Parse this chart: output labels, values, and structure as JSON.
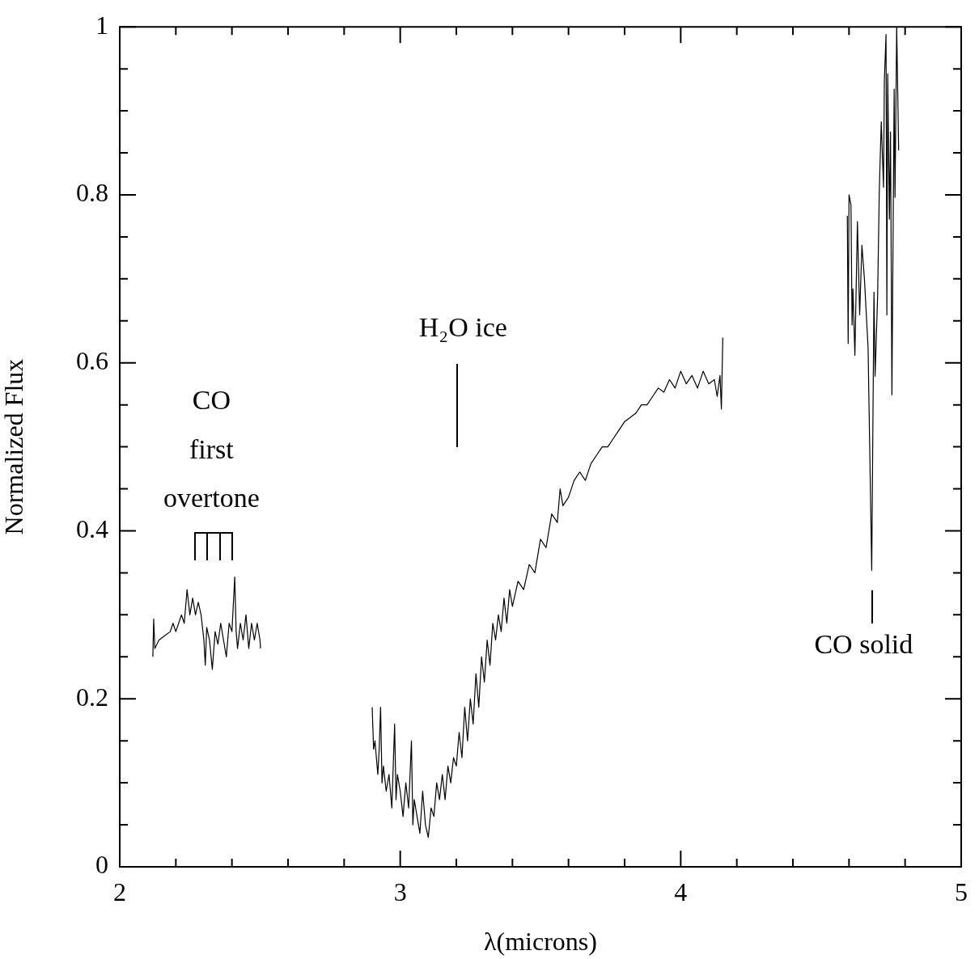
{
  "chart_data": {
    "type": "line",
    "xlabel": "λ(microns)",
    "ylabel": "Normalized Flux",
    "xlim": [
      2,
      5
    ],
    "ylim": [
      0,
      1
    ],
    "xticks": [
      2,
      {
        "value": 2.2,
        "label": null
      },
      {
        "value": 2.4,
        "label": null
      },
      {
        "value": 2.6,
        "label": null
      },
      {
        "value": 2.8,
        "label": null
      },
      3,
      {
        "value": 3.2,
        "label": null
      },
      {
        "value": 3.4,
        "label": null
      },
      {
        "value": 3.6,
        "label": null
      },
      {
        "value": 3.8,
        "label": null
      },
      4,
      {
        "value": 4.2,
        "label": null
      },
      {
        "value": 4.4,
        "label": null
      },
      {
        "value": 4.6,
        "label": null
      },
      {
        "value": 4.8,
        "label": null
      },
      5
    ],
    "yticks": [
      0,
      {
        "value": 0.05,
        "label": null
      },
      {
        "value": 0.1,
        "label": null
      },
      {
        "value": 0.15,
        "label": null
      },
      0.2,
      {
        "value": 0.25,
        "label": null
      },
      {
        "value": 0.3,
        "label": null
      },
      {
        "value": 0.35,
        "label": null
      },
      0.4,
      {
        "value": 0.45,
        "label": null
      },
      {
        "value": 0.5,
        "label": null
      },
      {
        "value": 0.55,
        "label": null
      },
      0.6,
      {
        "value": 0.65,
        "label": null
      },
      {
        "value": 0.7,
        "label": null
      },
      {
        "value": 0.75,
        "label": null
      },
      0.8,
      {
        "value": 0.85,
        "label": null
      },
      {
        "value": 0.9,
        "label": null
      },
      {
        "value": 0.95,
        "label": null
      },
      1
    ],
    "grid": false,
    "legend": false,
    "marker": "none",
    "line_style": "solid",
    "annotations": [
      "CO first overtone",
      "H₂O ice",
      "CO solid"
    ],
    "series": [
      {
        "color": "#000000",
        "x": [
          2.118,
          2.121,
          2.125,
          2.14,
          2.16,
          2.18,
          2.19,
          2.2,
          2.22,
          2.23,
          2.24,
          2.25,
          2.26,
          2.27,
          2.28,
          2.29,
          2.3,
          2.305,
          2.31,
          2.32,
          2.33,
          2.34,
          2.35,
          2.36,
          2.37,
          2.38,
          2.39,
          2.4,
          2.41,
          2.415,
          2.42,
          2.43,
          2.44,
          2.45,
          2.46,
          2.47,
          2.48,
          2.49,
          2.5,
          2.502
        ],
        "values": [
          0.25,
          0.295,
          0.26,
          0.27,
          0.275,
          0.28,
          0.29,
          0.28,
          0.3,
          0.29,
          0.33,
          0.3,
          0.32,
          0.3,
          0.315,
          0.3,
          0.27,
          0.24,
          0.285,
          0.27,
          0.235,
          0.28,
          0.265,
          0.29,
          0.27,
          0.25,
          0.29,
          0.28,
          0.345,
          0.28,
          0.26,
          0.29,
          0.27,
          0.3,
          0.26,
          0.29,
          0.27,
          0.29,
          0.27,
          0.26
        ]
      },
      {
        "color": "#000000",
        "x": [
          2.9,
          2.905,
          2.91,
          2.92,
          2.925,
          2.93,
          2.935,
          2.94,
          2.95,
          2.96,
          2.97,
          2.98,
          2.985,
          2.99,
          3.0,
          3.01,
          3.02,
          3.03,
          3.04,
          3.045,
          3.05,
          3.06,
          3.07,
          3.08,
          3.09,
          3.1,
          3.11,
          3.12,
          3.13,
          3.14,
          3.15,
          3.16,
          3.17,
          3.18,
          3.19,
          3.2,
          3.21,
          3.22,
          3.23,
          3.24,
          3.25,
          3.26,
          3.27,
          3.28,
          3.29,
          3.3,
          3.31,
          3.32,
          3.33,
          3.34,
          3.35,
          3.36,
          3.37,
          3.38,
          3.39,
          3.4,
          3.42,
          3.44,
          3.46,
          3.48,
          3.5,
          3.52,
          3.54,
          3.56,
          3.57,
          3.58,
          3.6,
          3.62,
          3.64,
          3.66,
          3.68,
          3.7,
          3.72,
          3.74,
          3.76,
          3.78,
          3.8,
          3.82,
          3.84,
          3.86,
          3.88,
          3.9,
          3.92,
          3.94,
          3.96,
          3.98,
          4.0,
          4.02,
          4.04,
          4.06,
          4.08,
          4.1,
          4.12,
          4.13,
          4.14,
          4.145,
          4.15
        ],
        "values": [
          0.19,
          0.14,
          0.15,
          0.11,
          0.14,
          0.19,
          0.1,
          0.12,
          0.09,
          0.11,
          0.07,
          0.17,
          0.08,
          0.11,
          0.09,
          0.06,
          0.1,
          0.07,
          0.15,
          0.05,
          0.08,
          0.06,
          0.04,
          0.09,
          0.05,
          0.035,
          0.07,
          0.06,
          0.1,
          0.08,
          0.11,
          0.08,
          0.12,
          0.1,
          0.13,
          0.12,
          0.16,
          0.13,
          0.19,
          0.15,
          0.2,
          0.17,
          0.23,
          0.19,
          0.25,
          0.22,
          0.27,
          0.24,
          0.29,
          0.27,
          0.3,
          0.28,
          0.32,
          0.29,
          0.33,
          0.31,
          0.34,
          0.33,
          0.36,
          0.35,
          0.39,
          0.38,
          0.42,
          0.41,
          0.45,
          0.43,
          0.44,
          0.46,
          0.47,
          0.46,
          0.48,
          0.49,
          0.5,
          0.5,
          0.51,
          0.52,
          0.53,
          0.535,
          0.54,
          0.55,
          0.55,
          0.56,
          0.57,
          0.565,
          0.58,
          0.57,
          0.59,
          0.575,
          0.585,
          0.57,
          0.59,
          0.575,
          0.58,
          0.56,
          0.585,
          0.545,
          0.63
        ]
      },
      {
        "color": "#000000",
        "x": [
          4.594,
          4.597,
          4.6,
          4.607,
          4.611,
          4.614,
          4.621,
          4.63,
          4.638,
          4.646,
          4.655,
          4.668,
          4.681,
          4.689,
          4.693,
          4.702,
          4.708,
          4.715,
          4.723,
          4.726,
          4.732,
          4.735,
          4.738,
          4.744,
          4.748,
          4.753,
          4.761,
          4.764,
          4.77,
          4.777
        ],
        "values": [
          0.775,
          0.623,
          0.8,
          0.788,
          0.645,
          0.688,
          0.609,
          0.768,
          0.657,
          0.74,
          0.7,
          0.618,
          0.353,
          0.684,
          0.584,
          0.679,
          0.805,
          0.887,
          0.809,
          0.935,
          0.991,
          0.657,
          0.944,
          0.771,
          0.875,
          0.562,
          0.926,
          0.797,
          1.0,
          0.853
        ]
      }
    ]
  }
}
